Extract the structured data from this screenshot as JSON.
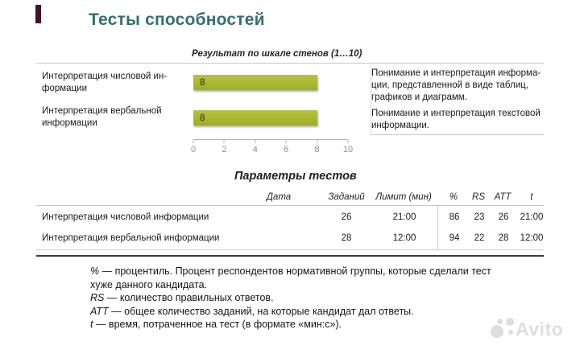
{
  "title": "Тесты способностей",
  "chart": {
    "subtitle": "Результат по шкале стенов (1…10)",
    "max": 10,
    "axis_ticks": [
      "0",
      "2",
      "4",
      "6",
      "8",
      "10"
    ],
    "bar_color": "#a9b32b",
    "rows": [
      {
        "label": "Интерпретация числовой ин-\nформации",
        "value": 8,
        "description": "Понимание и интерпретация информа-\nции, представленной в виде таблиц,\nграфиков и диаграмм."
      },
      {
        "label": "Интерпретация вербальной\nинформации",
        "value": 8,
        "description": "Понимание и интерпретация текстовой\nинформации."
      }
    ]
  },
  "chart_data": {
    "type": "bar",
    "orientation": "horizontal",
    "title": "Результат по шкале стенов (1…10)",
    "categories": [
      "Интерпретация числовой информации",
      "Интерпретация вербальной информации"
    ],
    "values": [
      8,
      8
    ],
    "xlim": [
      0,
      10
    ],
    "x_ticks": [
      0,
      2,
      4,
      6,
      8,
      10
    ],
    "bar_labels": [
      "8",
      "8"
    ]
  },
  "table": {
    "title": "Параметры тестов",
    "columns": [
      "Дата",
      "Заданий",
      "Лимит (мин)",
      "%",
      "RS",
      "ATT",
      "t"
    ],
    "rows": [
      {
        "name": "Интерпретация числовой информации",
        "date": "",
        "tasks": "26",
        "limit": "21:00",
        "pct": "86",
        "rs": "23",
        "att": "26",
        "time": "21:00"
      },
      {
        "name": "Интерпретация вербальной информации",
        "date": "",
        "tasks": "28",
        "limit": "12:00",
        "pct": "94",
        "rs": "22",
        "att": "28",
        "time": "12:00"
      }
    ]
  },
  "legend": [
    {
      "term": "%",
      "text": " — процентиль. Процент респондентов нормативной группы, которые сделали тест\nхуже данного кандидата."
    },
    {
      "term": "RS",
      "text": " — количество правильных ответов."
    },
    {
      "term": "ATT",
      "text": " — общее количество заданий, на которые кандидат дал ответы."
    },
    {
      "term": "t",
      "text": " — время, потраченное на тест (в формате «мин:с»)."
    }
  ],
  "watermark": {
    "text": "Avito"
  },
  "colors": {
    "accent": "#451322",
    "title": "#356e70",
    "bar": "#a9b32b",
    "divider": "#c9c9c9",
    "thick_rule": "#3a3a3a",
    "watermark": "#dedede"
  }
}
